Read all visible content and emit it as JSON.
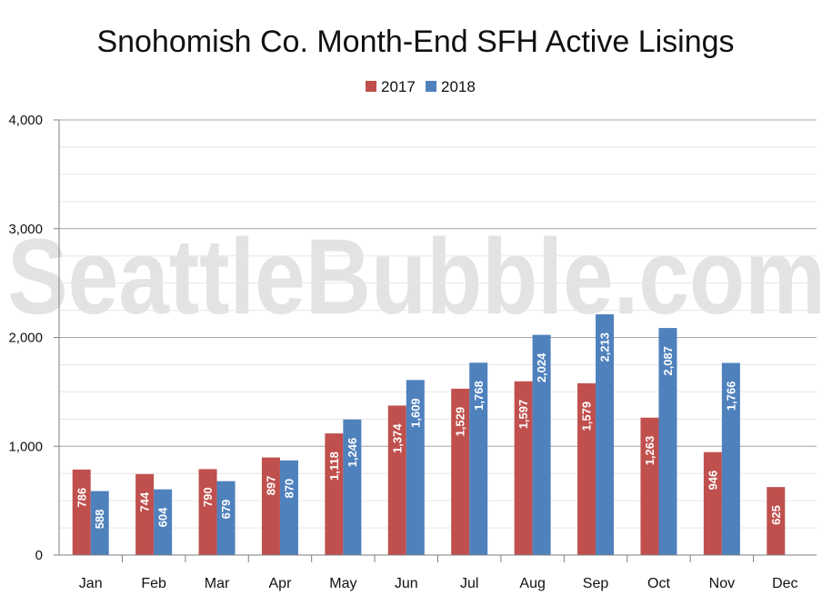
{
  "chart_data": {
    "type": "bar",
    "title": "Snohomish Co. Month-End SFH Active Lisings",
    "watermark": "SeattleBubble.com",
    "categories": [
      "Jan",
      "Feb",
      "Mar",
      "Apr",
      "May",
      "Jun",
      "Jul",
      "Aug",
      "Sep",
      "Oct",
      "Nov",
      "Dec"
    ],
    "series": [
      {
        "name": "2017",
        "color": "#c0504d",
        "values": [
          786,
          744,
          790,
          897,
          1118,
          1374,
          1529,
          1597,
          1579,
          1263,
          946,
          625
        ],
        "labels": [
          "786",
          "744",
          "790",
          "897",
          "1,118",
          "1,374",
          "1,529",
          "1,597",
          "1,579",
          "1,263",
          "946",
          "625"
        ]
      },
      {
        "name": "2018",
        "color": "#4f81bd",
        "values": [
          588,
          604,
          679,
          870,
          1246,
          1609,
          1768,
          2024,
          2213,
          2087,
          1766,
          null
        ],
        "labels": [
          "588",
          "604",
          "679",
          "870",
          "1,246",
          "1,609",
          "1,768",
          "2,024",
          "2,213",
          "2,087",
          "1,766",
          ""
        ]
      }
    ],
    "ylim": [
      0,
      4000
    ],
    "yticks": [
      0,
      1000,
      2000,
      3000,
      4000
    ],
    "ytick_labels": [
      "0",
      "1,000",
      "2,000",
      "3,000",
      "4,000"
    ],
    "grid": true,
    "legend_position": "top-center",
    "xlabel": "",
    "ylabel": ""
  }
}
